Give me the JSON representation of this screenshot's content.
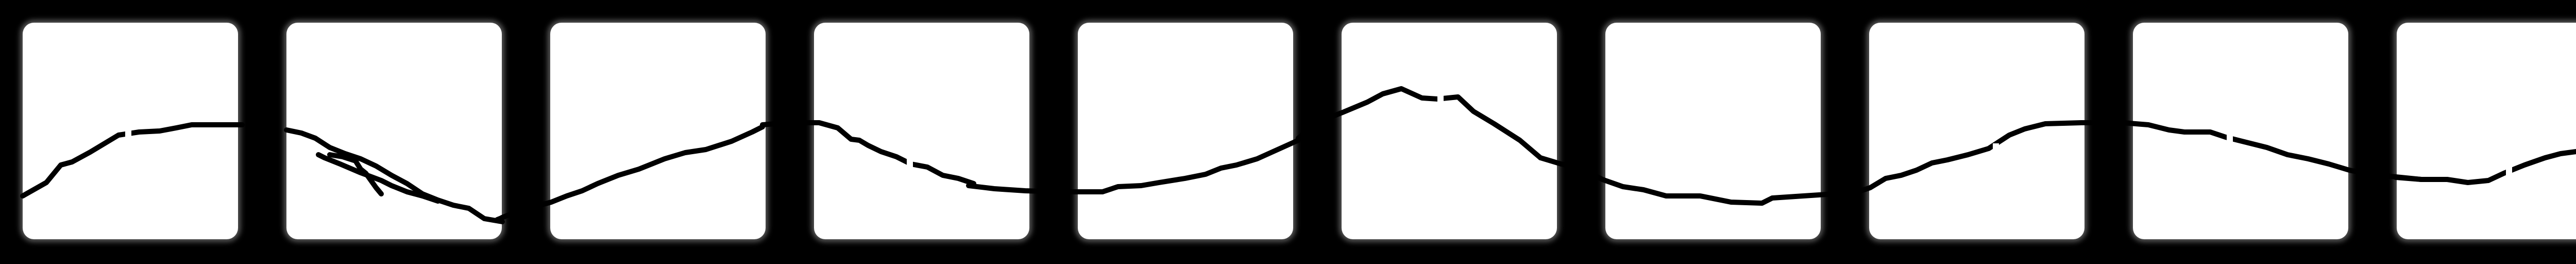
{
  "scene": {
    "background_color": "#000000",
    "panel_color": "#ffffff",
    "line_color": "#000000",
    "panel_count": 10,
    "description_free": true
  }
}
